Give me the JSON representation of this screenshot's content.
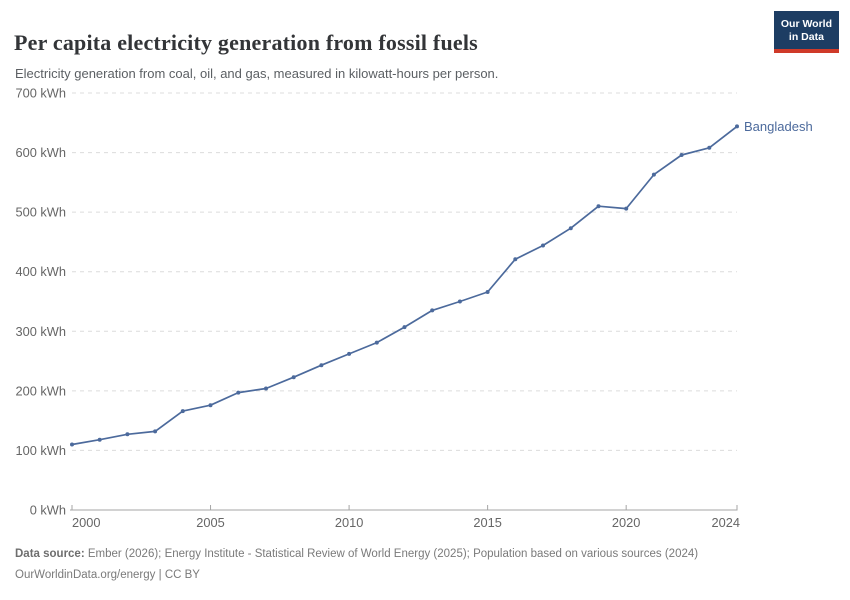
{
  "header": {
    "title": "Per capita electricity generation from fossil fuels",
    "subtitle": "Electricity generation from coal, oil, and gas, measured in kilowatt-hours per person.",
    "logo": {
      "line1": "Our World",
      "line2": "in Data"
    }
  },
  "chart_data": {
    "type": "line",
    "title": "Per capita electricity generation from fossil fuels",
    "xlabel": "",
    "ylabel": "",
    "y_unit": "kWh",
    "xlim": [
      2000,
      2024
    ],
    "ylim": [
      0,
      700
    ],
    "grid": "horizontal dashed",
    "legend_position": "end-of-line label",
    "x_tick_labels": [
      "2000",
      "2005",
      "2010",
      "2015",
      "2020",
      "2024"
    ],
    "x_tick_years": [
      2000,
      2005,
      2010,
      2015,
      2020,
      2024
    ],
    "y_tick_values": [
      0,
      100,
      200,
      300,
      400,
      500,
      600,
      700
    ],
    "y_tick_labels": [
      "0 kWh",
      "100 kWh",
      "200 kWh",
      "300 kWh",
      "400 kWh",
      "500 kWh",
      "600 kWh",
      "700 kWh"
    ],
    "x": [
      2000,
      2001,
      2002,
      2003,
      2004,
      2005,
      2006,
      2007,
      2008,
      2009,
      2010,
      2011,
      2012,
      2013,
      2014,
      2015,
      2016,
      2017,
      2018,
      2019,
      2020,
      2021,
      2022,
      2023,
      2024
    ],
    "series": [
      {
        "name": "Bangladesh",
        "color": "#4c6a9c",
        "values": [
          110,
          118,
          127,
          132,
          166,
          176,
          197,
          204,
          223,
          243,
          262,
          281,
          307,
          335,
          350,
          366,
          421,
          444,
          473,
          510,
          506,
          563,
          596,
          608,
          644
        ]
      }
    ]
  },
  "footer": {
    "data_source_label": "Data source:",
    "data_source_text": " Ember (2026); Energy Institute - Statistical Review of World Energy (2025); Population based on various sources (2024)",
    "url_text": "OurWorldinData.org/energy",
    "separator": " | ",
    "license_text": "CC BY"
  },
  "colors": {
    "accent_line": "#4c6a9c",
    "gridline": "#dcdcdc",
    "axis": "#a5a5a5",
    "tick_text": "#666666",
    "title_text": "#333538",
    "subtitle_text": "#5b5f63",
    "footer_text": "#7a7a7a",
    "logo_bg": "#1d3d63",
    "logo_red": "#cf3a29"
  }
}
